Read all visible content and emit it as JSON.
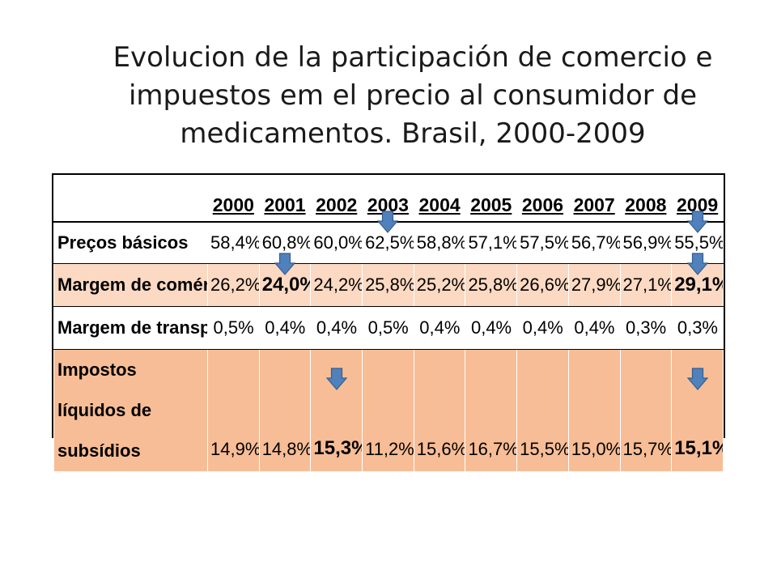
{
  "slide": {
    "title": "Evolucion de la participación de comercio e impuestos em el precio al consumidor de medicamentos. Brasil, 2000-2009"
  },
  "chart_data": {
    "type": "table",
    "columns": [
      "2000",
      "2001",
      "2002",
      "2003",
      "2004",
      "2005",
      "2006",
      "2007",
      "2008",
      "2009"
    ],
    "rows": [
      {
        "label": "Preços básicos",
        "values": [
          "58,4%",
          "60,8%",
          "60,0%",
          "62,5%",
          "58,8%",
          "57,1%",
          "57,5%",
          "56,7%",
          "56,9%",
          "55,5%"
        ],
        "bold": []
      },
      {
        "label": "Margem de comércio",
        "values": [
          "26,2%",
          "24,0%",
          "24,2%",
          "25,8%",
          "25,2%",
          "25,8%",
          "26,6%",
          "27,9%",
          "27,1%",
          "29,1%"
        ],
        "bold": [
          1,
          9
        ]
      },
      {
        "label": "Margem de transporte",
        "values": [
          "0,5%",
          "0,4%",
          "0,4%",
          "0,5%",
          "0,4%",
          "0,4%",
          "0,4%",
          "0,4%",
          "0,3%",
          "0,3%"
        ],
        "bold": []
      },
      {
        "label": "Impostos líquidos de subsídios",
        "values": [
          "14,9%",
          "14,8%",
          "15,3%",
          "11,2%",
          "15,6%",
          "16,7%",
          "15,5%",
          "15,0%",
          "15,7%",
          "15,1%"
        ],
        "bold": [
          2,
          9
        ]
      }
    ],
    "arrow_markers": [
      {
        "row": 0,
        "col": 3
      },
      {
        "row": 0,
        "col": 9
      },
      {
        "row": 1,
        "col": 1
      },
      {
        "row": 1,
        "col": 9
      },
      {
        "row": 3,
        "col": 2
      },
      {
        "row": 3,
        "col": 9
      }
    ],
    "colors": {
      "arrow_fill": "#4f81bd",
      "arrow_stroke": "#385d8a",
      "row_band_light": "#fbd9c2",
      "row_band_dark": "#f7bd96"
    }
  }
}
